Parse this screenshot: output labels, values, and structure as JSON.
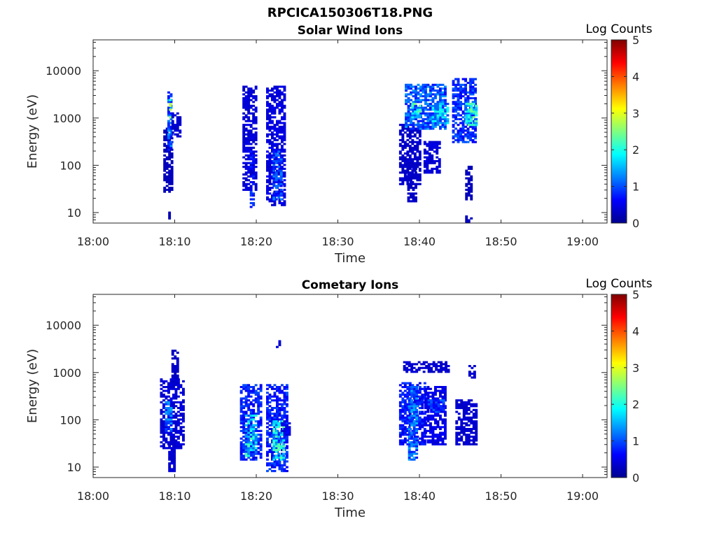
{
  "figure": {
    "title": "RPCICA150306T18.PNG"
  },
  "chart_data": [
    {
      "type": "heatmap",
      "title": "Solar Wind Ions",
      "xlabel": "Time",
      "ylabel": "Energy (eV)",
      "x_ticks": [
        "18:00",
        "18:10",
        "18:20",
        "18:30",
        "18:40",
        "18:50",
        "19:00"
      ],
      "x_range_minutes": [
        0,
        63
      ],
      "y_ticks": [
        "10",
        "100",
        "1000",
        "10000"
      ],
      "y_scale": "log",
      "y_range": [
        6,
        45000
      ],
      "colorbar": {
        "label": "Log Counts",
        "ticks": [
          "0",
          "1",
          "2",
          "3",
          "4",
          "5"
        ],
        "range": [
          0,
          5
        ],
        "colormap": "jet"
      },
      "grid": false,
      "blobs": [
        {
          "t0": 8.6,
          "t1": 9.6,
          "e0": 28,
          "e1": 600,
          "v": 0.1
        },
        {
          "t0": 9.1,
          "t1": 9.6,
          "e0": 200,
          "e1": 3500,
          "v": 0.9
        },
        {
          "t0": 9.3,
          "t1": 9.6,
          "e0": 1000,
          "e1": 2500,
          "v": 1.9
        },
        {
          "t0": 9.6,
          "t1": 10.8,
          "e0": 400,
          "e1": 1200,
          "v": 0.2
        },
        {
          "t0": 9.2,
          "t1": 9.5,
          "e0": 6,
          "e1": 11,
          "v": 0.05
        },
        {
          "t0": 18.3,
          "t1": 19.9,
          "e0": 30,
          "e1": 4800,
          "v": 0.25
        },
        {
          "t0": 19.2,
          "t1": 19.8,
          "e0": 13,
          "e1": 200,
          "v": 0.55
        },
        {
          "t0": 21.2,
          "t1": 23.4,
          "e0": 14,
          "e1": 4500,
          "v": 0.3
        },
        {
          "t0": 22.0,
          "t1": 23.0,
          "e0": 20,
          "e1": 200,
          "v": 0.8
        },
        {
          "t0": 37.5,
          "t1": 40.0,
          "e0": 40,
          "e1": 700,
          "v": 0.18
        },
        {
          "t0": 38.5,
          "t1": 39.5,
          "e0": 18,
          "e1": 100,
          "v": 0.15
        },
        {
          "t0": 38.2,
          "t1": 43.2,
          "e0": 600,
          "e1": 5000,
          "v": 0.9
        },
        {
          "t0": 39.0,
          "t1": 40.0,
          "e0": 1000,
          "e1": 2000,
          "v": 1.6
        },
        {
          "t0": 41.5,
          "t1": 43.5,
          "e0": 800,
          "e1": 2000,
          "v": 1.4
        },
        {
          "t0": 40.5,
          "t1": 42.5,
          "e0": 70,
          "e1": 300,
          "v": 0.25
        },
        {
          "t0": 44.0,
          "t1": 46.8,
          "e0": 300,
          "e1": 6500,
          "v": 0.7
        },
        {
          "t0": 45.6,
          "t1": 46.8,
          "e0": 700,
          "e1": 2000,
          "v": 1.7
        },
        {
          "t0": 45.6,
          "t1": 46.2,
          "e0": 20,
          "e1": 90,
          "v": 0.1
        },
        {
          "t0": 45.6,
          "t1": 46.2,
          "e0": 6,
          "e1": 8,
          "v": 0.1
        }
      ]
    },
    {
      "type": "heatmap",
      "title": "Cometary Ions",
      "xlabel": "Time",
      "ylabel": "Energy (eV)",
      "x_ticks": [
        "18:00",
        "18:10",
        "18:20",
        "18:30",
        "18:40",
        "18:50",
        "19:00"
      ],
      "x_range_minutes": [
        0,
        63
      ],
      "y_ticks": [
        "10",
        "100",
        "1000",
        "10000"
      ],
      "y_scale": "log",
      "y_range": [
        6,
        45000
      ],
      "colorbar": {
        "label": "Log Counts",
        "ticks": [
          "0",
          "1",
          "2",
          "3",
          "4",
          "5"
        ],
        "range": [
          0,
          5
        ],
        "colormap": "jet"
      },
      "grid": false,
      "blobs": [
        {
          "t0": 8.2,
          "t1": 11.2,
          "e0": 25,
          "e1": 700,
          "v": 0.25
        },
        {
          "t0": 8.8,
          "t1": 9.6,
          "e0": 60,
          "e1": 250,
          "v": 0.9
        },
        {
          "t0": 9.2,
          "t1": 10.0,
          "e0": 8,
          "e1": 40,
          "v": 0.2
        },
        {
          "t0": 9.6,
          "t1": 10.4,
          "e0": 600,
          "e1": 2800,
          "v": 0.15
        },
        {
          "t0": 18.0,
          "t1": 20.5,
          "e0": 15,
          "e1": 550,
          "v": 0.6
        },
        {
          "t0": 18.6,
          "t1": 20.0,
          "e0": 18,
          "e1": 120,
          "v": 1.5
        },
        {
          "t0": 21.2,
          "t1": 23.8,
          "e0": 8,
          "e1": 550,
          "v": 0.6
        },
        {
          "t0": 22.0,
          "t1": 23.4,
          "e0": 15,
          "e1": 90,
          "v": 1.6
        },
        {
          "t0": 23.0,
          "t1": 24.2,
          "e0": 50,
          "e1": 90,
          "v": 0.3
        },
        {
          "t0": 22.4,
          "t1": 22.8,
          "e0": 3500,
          "e1": 4800,
          "v": 0.2
        },
        {
          "t0": 37.5,
          "t1": 40.6,
          "e0": 30,
          "e1": 580,
          "v": 0.55
        },
        {
          "t0": 38.6,
          "t1": 39.6,
          "e0": 14,
          "e1": 500,
          "v": 0.95
        },
        {
          "t0": 40.6,
          "t1": 43.2,
          "e0": 30,
          "e1": 480,
          "v": 0.35
        },
        {
          "t0": 38.0,
          "t1": 43.4,
          "e0": 1000,
          "e1": 1700,
          "v": 0.2
        },
        {
          "t0": 41.0,
          "t1": 43.0,
          "e0": 150,
          "e1": 250,
          "v": 0.7
        },
        {
          "t0": 44.4,
          "t1": 46.8,
          "e0": 30,
          "e1": 250,
          "v": 0.2
        },
        {
          "t0": 46.0,
          "t1": 46.8,
          "e0": 800,
          "e1": 1400,
          "v": 0.2
        }
      ]
    }
  ]
}
